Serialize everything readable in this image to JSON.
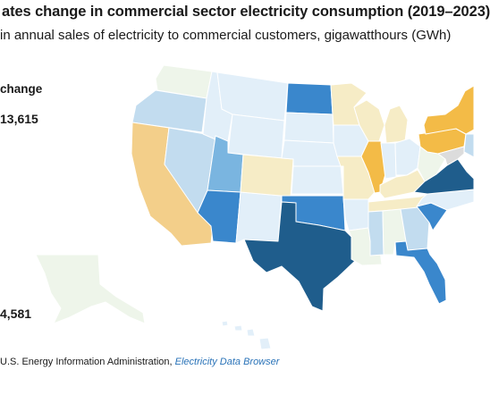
{
  "title": "ates change in commercial sector electricity consumption (2019–2023)",
  "subtitle": "in annual sales of electricity to commercial customers, gigawatthours (GWh)",
  "legend": {
    "title": "change",
    "max_label": "13,615",
    "min_label": "4,581"
  },
  "source": {
    "text": "U.S. Energy Information Administration, ",
    "link": "Electricity Data Browser"
  },
  "colors": {
    "darkest_blue": "#1f5d8c",
    "blue": "#3a87cc",
    "medium_blue": "#7ab5e0",
    "light_blue": "#c2dcef",
    "pale_blue": "#e2eff9",
    "lightest": "#eef5ea",
    "pale_yellow": "#f6ecc6",
    "light_orange": "#f3cf8a",
    "orange": "#f3bb47",
    "grey": "#dcdcdc"
  },
  "states": [
    {
      "code": "WA",
      "fill": "lightest"
    },
    {
      "code": "OR",
      "fill": "light_blue"
    },
    {
      "code": "CA",
      "fill": "light_orange"
    },
    {
      "code": "NV",
      "fill": "light_blue"
    },
    {
      "code": "ID",
      "fill": "pale_blue"
    },
    {
      "code": "MT",
      "fill": "pale_blue"
    },
    {
      "code": "WY",
      "fill": "pale_blue"
    },
    {
      "code": "UT",
      "fill": "medium_blue"
    },
    {
      "code": "AZ",
      "fill": "blue"
    },
    {
      "code": "NM",
      "fill": "pale_blue"
    },
    {
      "code": "CO",
      "fill": "pale_yellow"
    },
    {
      "code": "ND",
      "fill": "blue"
    },
    {
      "code": "SD",
      "fill": "pale_blue"
    },
    {
      "code": "NE",
      "fill": "pale_blue"
    },
    {
      "code": "KS",
      "fill": "pale_blue"
    },
    {
      "code": "OK",
      "fill": "blue"
    },
    {
      "code": "TX",
      "fill": "darkest_blue"
    },
    {
      "code": "MN",
      "fill": "pale_yellow"
    },
    {
      "code": "IA",
      "fill": "pale_blue"
    },
    {
      "code": "MO",
      "fill": "pale_yellow"
    },
    {
      "code": "AR",
      "fill": "pale_blue"
    },
    {
      "code": "LA",
      "fill": "lightest"
    },
    {
      "code": "WI",
      "fill": "pale_yellow"
    },
    {
      "code": "IL",
      "fill": "orange"
    },
    {
      "code": "MI",
      "fill": "pale_yellow"
    },
    {
      "code": "IN",
      "fill": "pale_blue"
    },
    {
      "code": "OH",
      "fill": "pale_blue"
    },
    {
      "code": "KY",
      "fill": "pale_yellow"
    },
    {
      "code": "TN",
      "fill": "pale_yellow"
    },
    {
      "code": "MS",
      "fill": "light_blue"
    },
    {
      "code": "AL",
      "fill": "lightest"
    },
    {
      "code": "GA",
      "fill": "light_blue"
    },
    {
      "code": "FL",
      "fill": "blue"
    },
    {
      "code": "SC",
      "fill": "blue"
    },
    {
      "code": "NC",
      "fill": "pale_blue"
    },
    {
      "code": "VA",
      "fill": "darkest_blue"
    },
    {
      "code": "WV",
      "fill": "lightest"
    },
    {
      "code": "PA",
      "fill": "orange"
    },
    {
      "code": "NY",
      "fill": "orange"
    },
    {
      "code": "NJ",
      "fill": "light_blue"
    },
    {
      "code": "MD",
      "fill": "grey"
    },
    {
      "code": "AK",
      "fill": "lightest"
    },
    {
      "code": "HI",
      "fill": "pale_blue"
    }
  ]
}
